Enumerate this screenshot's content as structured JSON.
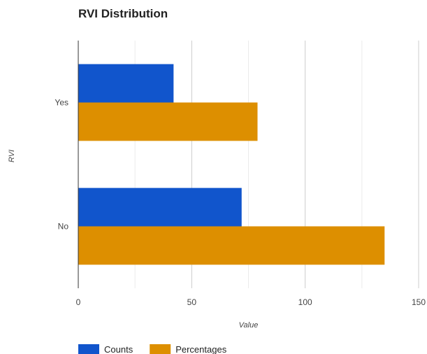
{
  "chart_data": {
    "type": "bar",
    "orientation": "horizontal",
    "title": "RVI Distribution",
    "xlabel": "Value",
    "ylabel": "RVI",
    "categories": [
      "Yes",
      "No"
    ],
    "series": [
      {
        "name": "Counts",
        "values": [
          42,
          72
        ],
        "color": "#1155cc"
      },
      {
        "name": "Percentages",
        "values": [
          79,
          135
        ],
        "color": "#dd8f00"
      }
    ],
    "xlim": [
      0,
      150
    ],
    "xticks": [
      0,
      50,
      100,
      150
    ],
    "grid": true,
    "legend_position": "bottom-left"
  }
}
